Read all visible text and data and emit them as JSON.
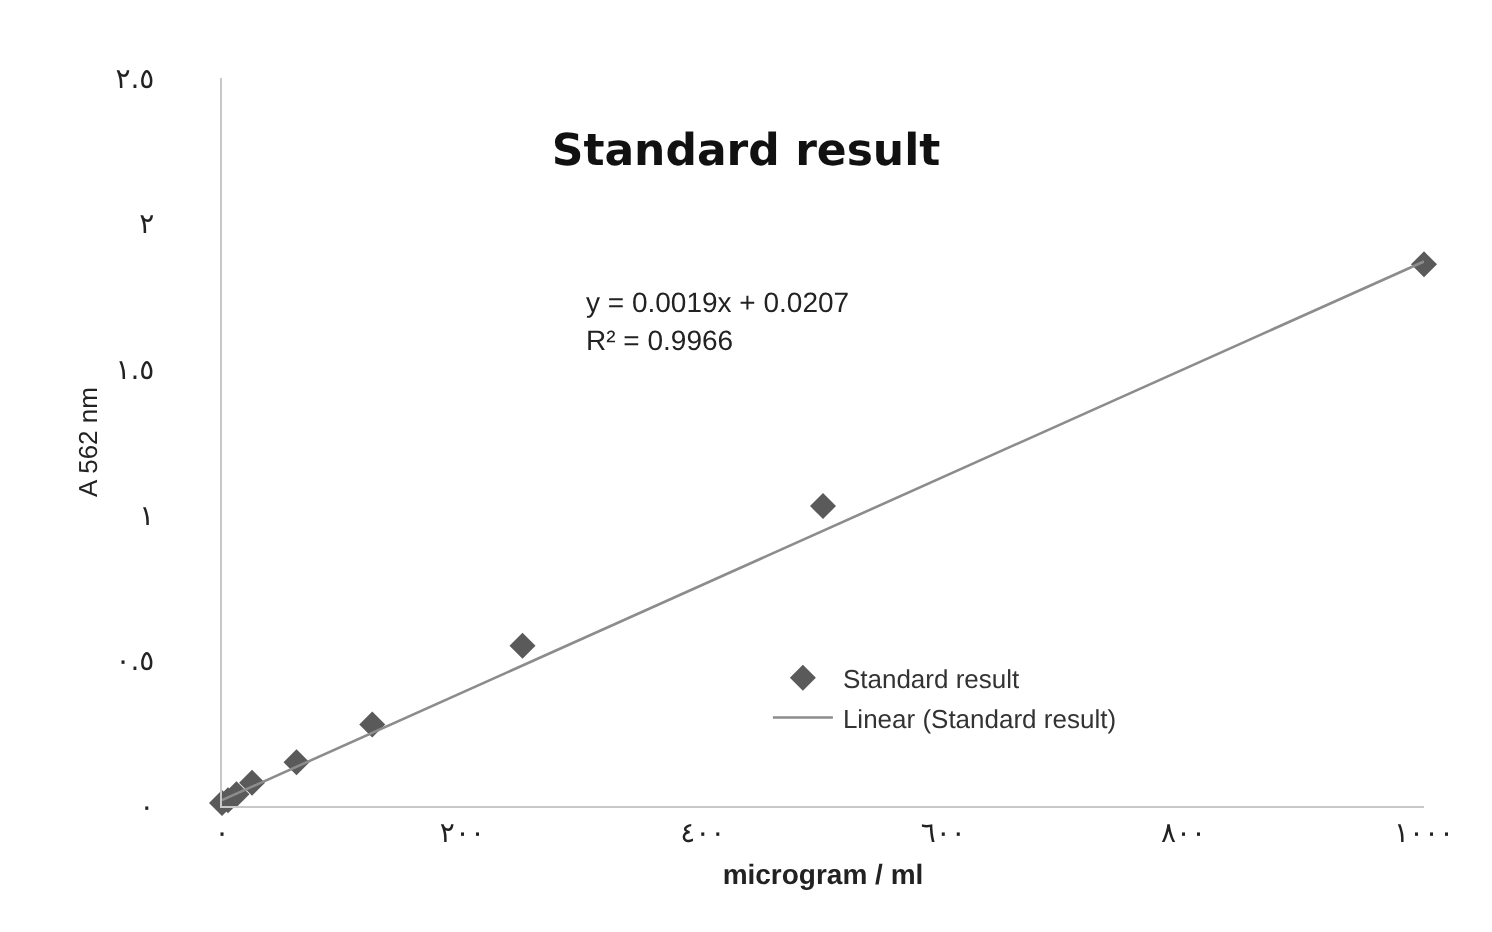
{
  "chart_data": {
    "type": "scatter",
    "title": "Standard result",
    "xlabel": "microgram / ml",
    "ylabel": "A 562 nm",
    "x": [
      0,
      5,
      12,
      25,
      62,
      125,
      250,
      500,
      1000
    ],
    "series": [
      {
        "name": "Standard result",
        "color": "#5a5a5a",
        "marker": "diamond",
        "values": [
          0.01,
          0.02,
          0.04,
          0.08,
          0.15,
          0.28,
          0.55,
          1.03,
          1.86
        ]
      },
      {
        "name": "Linear (Standard result)",
        "type": "line",
        "color": "#8c8c8c",
        "line_style": "solid",
        "x": [
          0,
          1000
        ],
        "values": [
          0.02,
          1.87
        ]
      }
    ],
    "annotations": [
      "y = 0.0019x + 0.0207",
      "R² = 0.9966"
    ],
    "xlim": [
      0,
      1000
    ],
    "ylim": [
      0,
      2.5
    ],
    "xticks": [
      {
        "value": 0,
        "label": "٠"
      },
      {
        "value": 200,
        "label": "٢٠٠"
      },
      {
        "value": 400,
        "label": "٤٠٠"
      },
      {
        "value": 600,
        "label": "٦٠٠"
      },
      {
        "value": 800,
        "label": "٨٠٠"
      },
      {
        "value": 1000,
        "label": "١٠٠٠"
      }
    ],
    "yticks": [
      {
        "value": 0,
        "label": "٠"
      },
      {
        "value": 0.5,
        "label": "٠.٥"
      },
      {
        "value": 1,
        "label": "١"
      },
      {
        "value": 1.5,
        "label": "١.٥"
      },
      {
        "value": 2,
        "label": "٢"
      },
      {
        "value": 2.5,
        "label": "٢.٥"
      }
    ],
    "legend": "bottom right"
  }
}
